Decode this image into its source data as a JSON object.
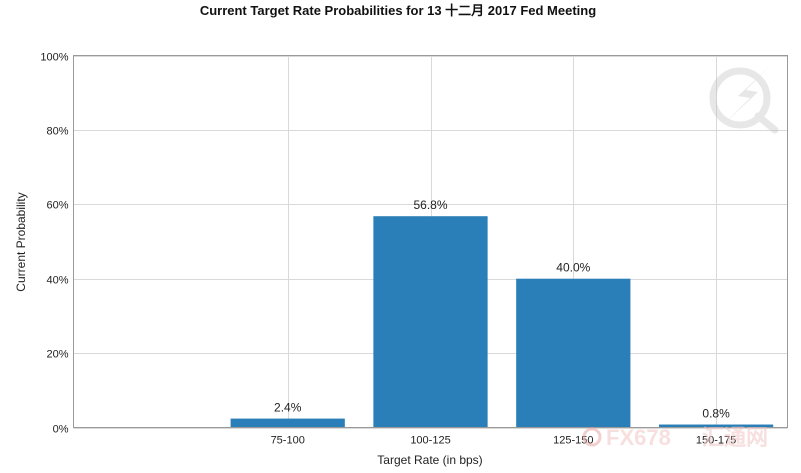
{
  "chart_data": {
    "type": "bar",
    "title": "Current Target Rate Probabilities for 13 十二月 2017 Fed Meeting",
    "xlabel": "Target Rate (in bps)",
    "ylabel": "Current Probability",
    "categories": [
      "75-100",
      "100-125",
      "125-150",
      "150-175"
    ],
    "values": [
      2.4,
      56.8,
      40.0,
      0.8
    ],
    "data_labels": [
      "2.4%",
      "56.8%",
      "40.0%",
      "0.8%"
    ],
    "ylim": [
      0,
      100
    ],
    "yticks": [
      0,
      20,
      40,
      60,
      80,
      100
    ],
    "ytick_labels": [
      "0%",
      "20%",
      "40%",
      "60%",
      "80%",
      "100%"
    ],
    "grid": true,
    "bar_color": "#2b7fb8"
  },
  "watermark": {
    "logo_icon": "lightning-q-logo-icon",
    "brand_text": "FX678",
    "brand_text_cn": "汇通网"
  }
}
